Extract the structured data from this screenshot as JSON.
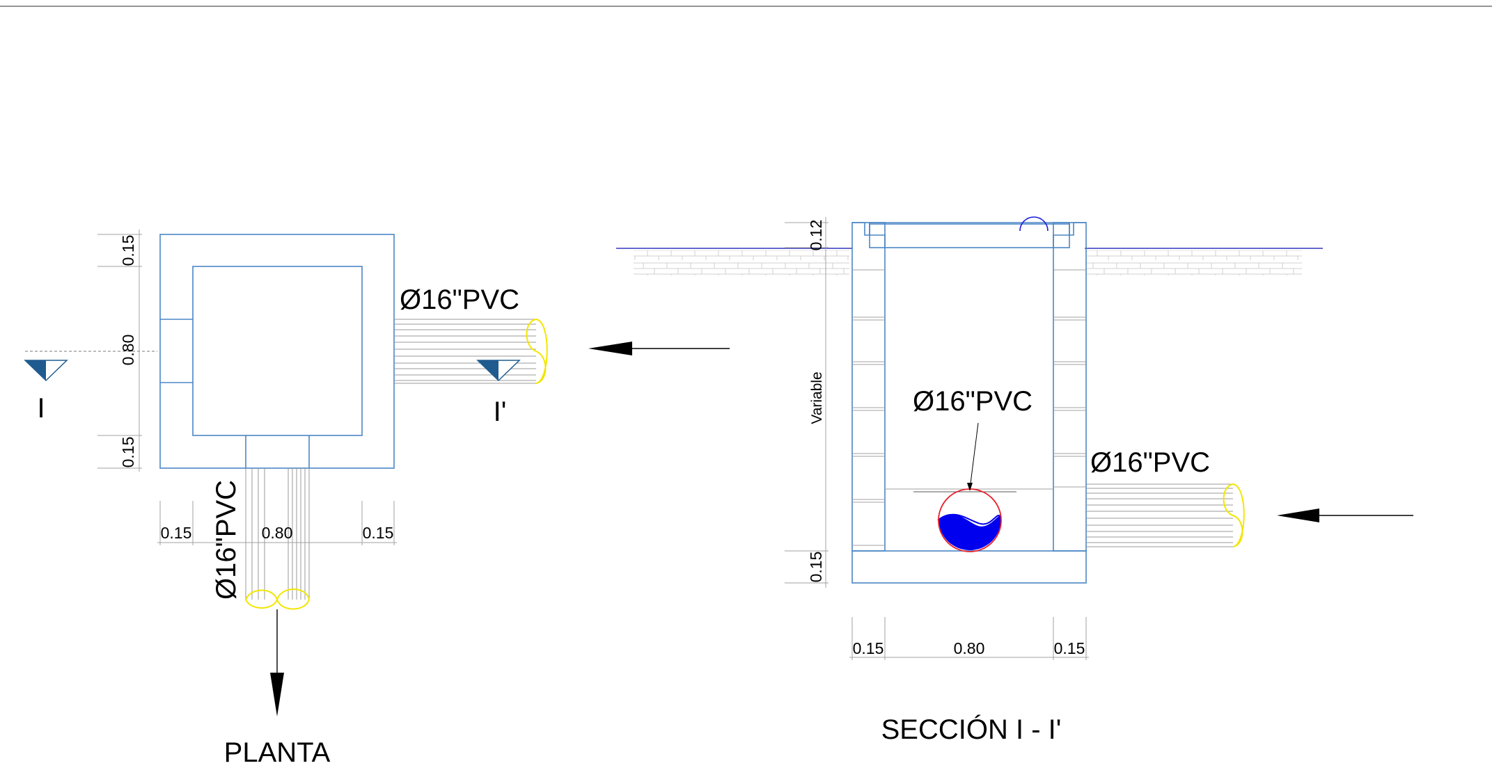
{
  "colors": {
    "structure": "#4a86c5",
    "pipe_end": "#f2e600",
    "water": "#0000ee",
    "pipe_outline": "#e8202a",
    "section_marker": "#1f5b8e",
    "ground_line": "#3535c0"
  },
  "plan": {
    "title": "PLANTA",
    "pipe_inlet_label": "Ø16\"PVC",
    "pipe_outlet_label": "Ø16\"PVC",
    "section_start": "I",
    "section_end": "I'",
    "dims_vertical": [
      "0.15",
      "0.80",
      "0.15"
    ],
    "dims_horizontal": [
      "0.15",
      "0.80",
      "0.15"
    ],
    "flow_arrow_icon": "arrow-left-icon",
    "outlet_arrow_icon": "arrow-down-icon"
  },
  "section": {
    "title": "SECCIÓN I - I'",
    "inner_pipe_label": "Ø16\"PVC",
    "inlet_pipe_label": "Ø16\"PVC",
    "depth_label": "Variable",
    "dim_cover": "0.12",
    "dim_base": "0.15",
    "dims_horizontal": [
      "0.15",
      "0.80",
      "0.15"
    ],
    "flow_arrow_icon": "arrow-left-icon"
  }
}
